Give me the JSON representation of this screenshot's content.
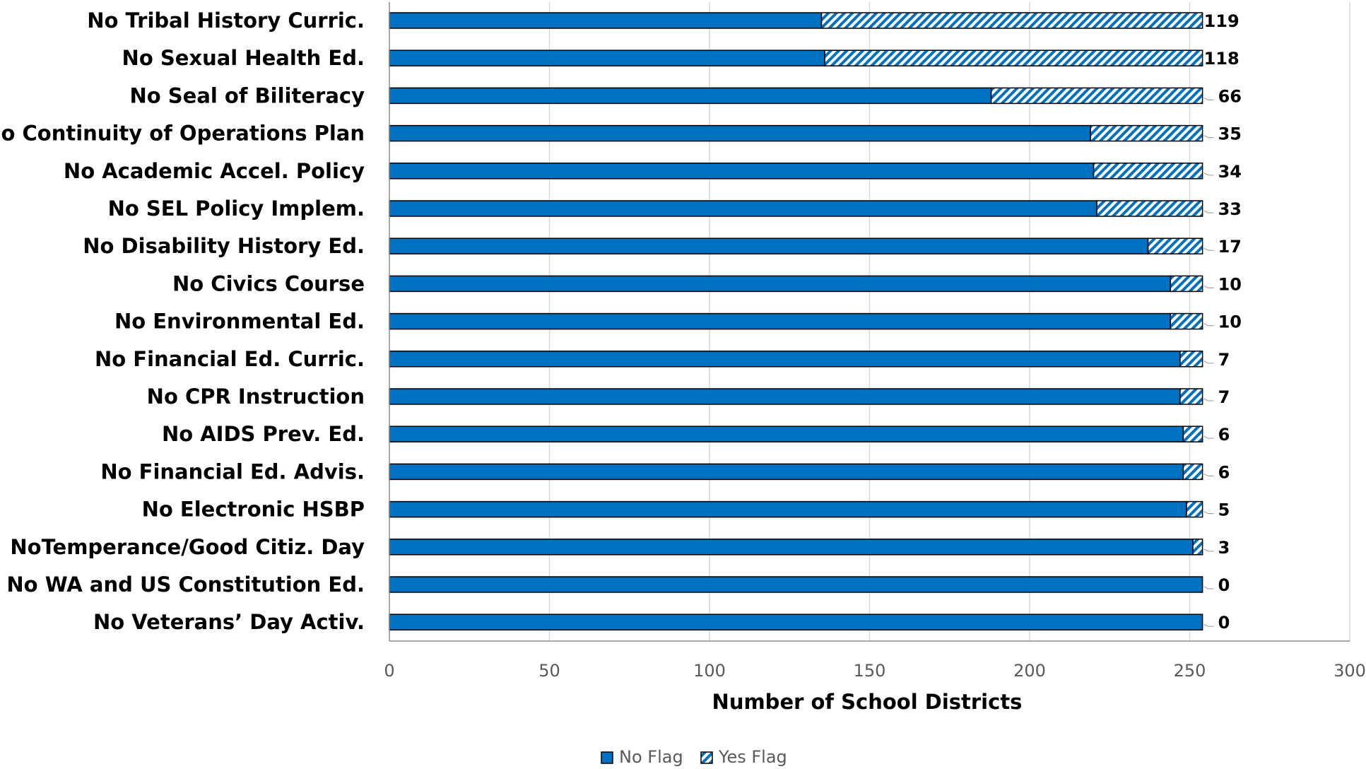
{
  "chart_data": {
    "type": "bar",
    "orientation": "horizontal",
    "stacked": true,
    "categories": [
      "No Tribal History Curric.",
      "No Sexual Health Ed.",
      "No Seal of Biliteracy",
      "No Continuity of Operations Plan",
      "No Academic Accel. Policy",
      "No SEL Policy Implem.",
      "No Disability History Ed.",
      "No Civics Course",
      "No Environmental Ed.",
      "No Financial Ed. Curric.",
      "No CPR Instruction",
      "No  AIDS Prev. Ed.",
      "No Financial Ed. Advis.",
      "No Electronic HSBP",
      "NoTemperance/Good Citiz. Day",
      "No WA and US Constitution Ed.",
      "No Veterans’ Day Activ."
    ],
    "series": [
      {
        "name": "No Flag",
        "color": "#0070C0",
        "pattern": "solid",
        "values": [
          135,
          136,
          188,
          219,
          220,
          221,
          237,
          244,
          244,
          247,
          247,
          248,
          248,
          249,
          251,
          254,
          254
        ]
      },
      {
        "name": "Yes Flag",
        "color": "#0070C0",
        "pattern": "diagonal-hatch",
        "values": [
          119,
          118,
          66,
          35,
          34,
          33,
          17,
          10,
          10,
          7,
          7,
          6,
          6,
          5,
          3,
          0,
          0
        ]
      }
    ],
    "data_labels": [
      "119",
      "118",
      "66",
      "35",
      "34",
      "33",
      "17",
      "10",
      "10",
      "7",
      "7",
      "6",
      "6",
      "5",
      "3",
      "0",
      "0"
    ],
    "xlabel": "Number of School Districts",
    "ylabel": "",
    "xlim": [
      0,
      300
    ],
    "x_ticks": [
      "0",
      "50",
      "100",
      "150",
      "200",
      "250",
      "300"
    ],
    "grid": "vertical",
    "legend_position": "bottom-center"
  }
}
